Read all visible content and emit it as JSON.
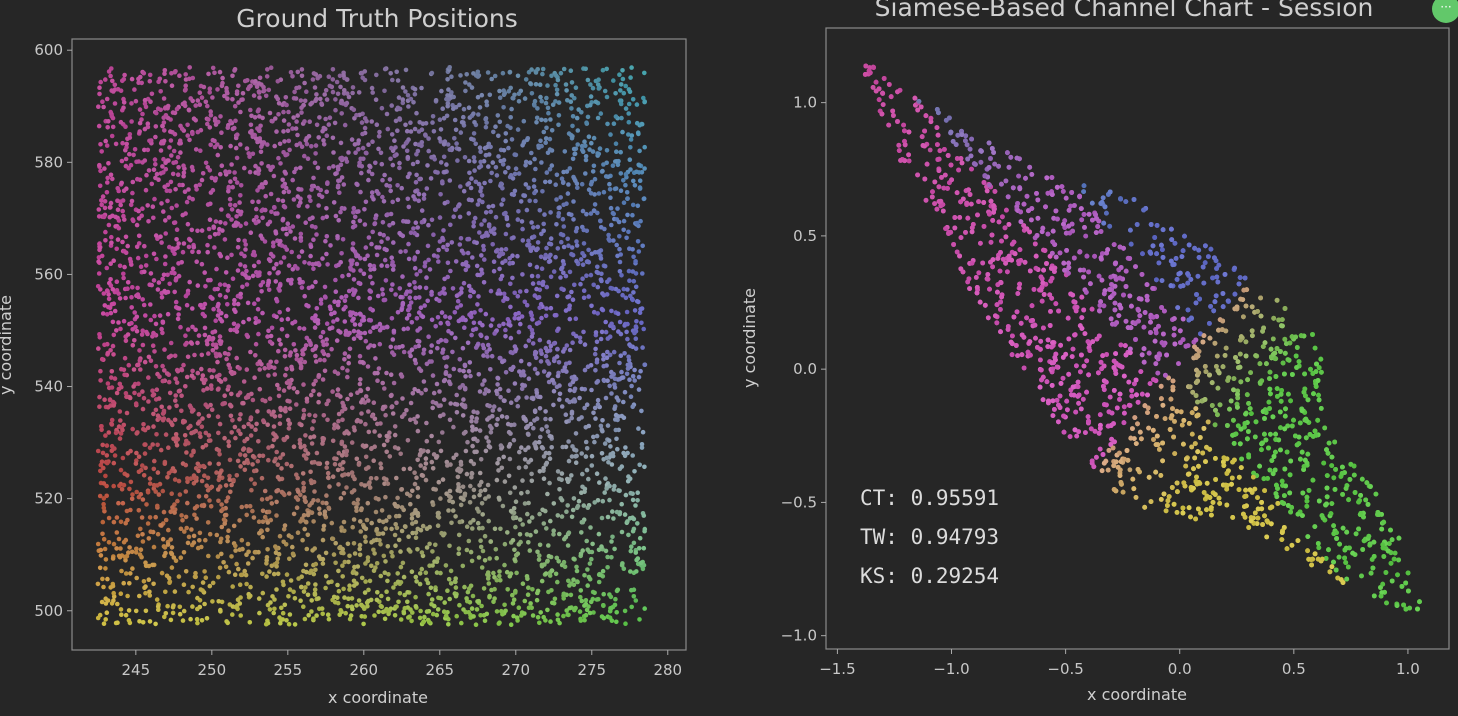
{
  "ui": {
    "more_button": "···"
  },
  "chart_data": [
    {
      "type": "scatter",
      "title": "Ground Truth Positions",
      "xlabel": "x coordinate",
      "ylabel": "y coordinate",
      "xlim": [
        240.8,
        281.2
      ],
      "ylim": [
        493,
        602
      ],
      "xticks": [
        245,
        250,
        255,
        260,
        265,
        270,
        275,
        280
      ],
      "yticks": [
        500,
        520,
        540,
        560,
        580,
        600
      ],
      "grid": false,
      "point_extent": {
        "x": [
          242.5,
          278.5
        ],
        "y": [
          497.5,
          597
        ]
      },
      "color_map": {
        "top_left": "#bf4a9a",
        "top_right": "#3f9fa6",
        "mid_left": "#c6479e",
        "center": "#a95bb4",
        "mid_right": "#6a6ac8",
        "lower_left": "#bb4a3e",
        "bottom_left": "#d2c145",
        "bottom_middle": "#a9c447",
        "bottom_right": "#55c348",
        "lower_right": "#8fb4b4"
      }
    },
    {
      "type": "scatter",
      "title": "Siamese-Based Channel Chart - Session",
      "xlabel": "x coordinate",
      "ylabel": "y coordinate",
      "xlim": [
        -1.55,
        1.18
      ],
      "ylim": [
        -1.05,
        1.28
      ],
      "xticks": [
        -1.5,
        -1.0,
        -0.5,
        0.0,
        0.5,
        1.0
      ],
      "xtick_labels": [
        "−1.5",
        "−1.0",
        "−0.5",
        "0.0",
        "0.5",
        "1.0"
      ],
      "yticks": [
        -1.0,
        -0.5,
        0.0,
        0.5,
        1.0
      ],
      "ytick_labels": [
        "−1.0",
        "−0.5",
        "0.0",
        "0.5",
        "1.0"
      ],
      "grid": false,
      "point_cloud_outline": [
        [
          -1.43,
          1.19
        ],
        [
          -1.2,
          1.05
        ],
        [
          -0.85,
          0.86
        ],
        [
          -0.5,
          0.72
        ],
        [
          -0.2,
          0.64
        ],
        [
          0.1,
          0.48
        ],
        [
          0.4,
          0.28
        ],
        [
          0.6,
          0.12
        ],
        [
          0.65,
          0.0
        ],
        [
          0.62,
          -0.2
        ],
        [
          0.72,
          -0.3
        ],
        [
          0.85,
          -0.45
        ],
        [
          1.0,
          -0.7
        ],
        [
          1.08,
          -0.93
        ],
        [
          0.95,
          -0.9
        ],
        [
          0.7,
          -0.8
        ],
        [
          0.4,
          -0.65
        ],
        [
          0.2,
          -0.55
        ],
        [
          0.05,
          -0.57
        ],
        [
          -0.1,
          -0.55
        ],
        [
          -0.3,
          -0.45
        ],
        [
          -0.5,
          -0.25
        ],
        [
          -0.7,
          0.0
        ],
        [
          -1.0,
          0.4
        ],
        [
          -1.25,
          0.8
        ]
      ],
      "stats": [
        {
          "label": "CT",
          "value": "0.95591"
        },
        {
          "label": "TW",
          "value": "0.94793"
        },
        {
          "label": "KS",
          "value": "0.29254"
        }
      ]
    }
  ]
}
